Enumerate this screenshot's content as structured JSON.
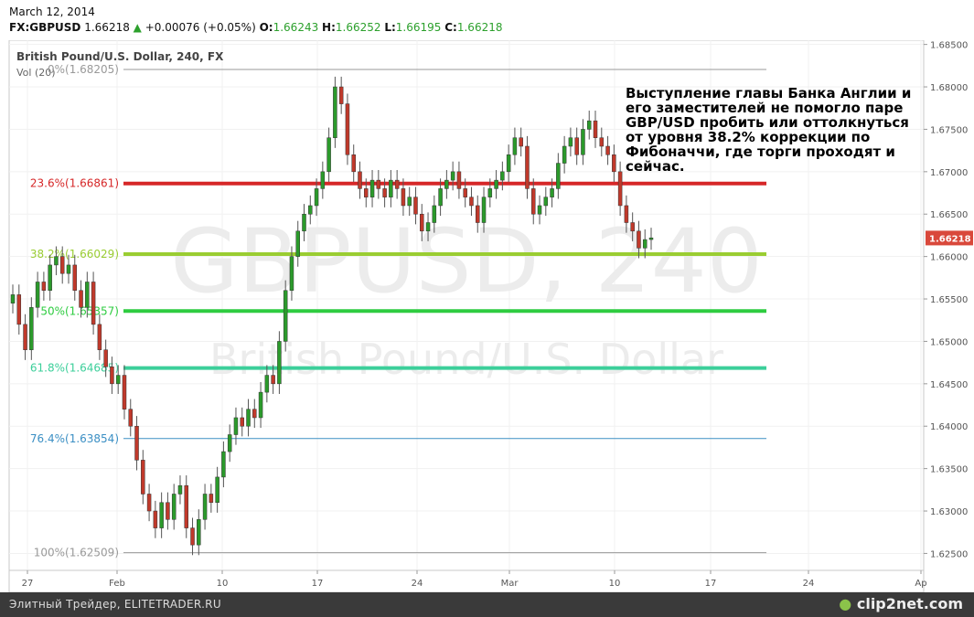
{
  "header": {
    "date": "March 12, 2014",
    "symbol": "FX:GBPUSD",
    "last": "1.66218",
    "change": "+0.00076 (+0.05%)",
    "o_label": "O:",
    "o": "1.66243",
    "h_label": "H:",
    "h": "1.66252",
    "l_label": "L:",
    "l": "1.66195",
    "c_label": "C:",
    "c": "1.66218"
  },
  "chart_data": {
    "type": "candlestick",
    "title": "British Pound/U.S. Dollar, 240, FX",
    "volume_label": "Vol (20)",
    "watermark_main": "GBPUSD, 240",
    "watermark_sub": "British Pound/U.S. Dollar",
    "ylim": [
      1.623,
      1.6855
    ],
    "y_ticks": [
      "1.68500",
      "1.68000",
      "1.67500",
      "1.67000",
      "1.66500",
      "1.66000",
      "1.65500",
      "1.65000",
      "1.64500",
      "1.64000",
      "1.63500",
      "1.63000",
      "1.62500"
    ],
    "y_tick_values": [
      1.685,
      1.68,
      1.675,
      1.67,
      1.665,
      1.66,
      1.655,
      1.65,
      1.645,
      1.64,
      1.635,
      1.63,
      1.625
    ],
    "x_ticks": [
      "27",
      "Feb",
      "10",
      "17",
      "24",
      "Mar",
      "10",
      "17",
      "24",
      "Ap"
    ],
    "price_tag": "1.66218",
    "fib_levels": [
      {
        "label": "0%(1.68205)",
        "value": 1.68205,
        "color": "#999999",
        "thick": false
      },
      {
        "label": "23.6%(1.66861)",
        "value": 1.66861,
        "color": "#d62728",
        "thick": true
      },
      {
        "label": "38.2%(1.66029)",
        "value": 1.66029,
        "color": "#9acd32",
        "thick": true
      },
      {
        "label": "50%(1.65357)",
        "value": 1.65357,
        "color": "#2ecc40",
        "thick": true
      },
      {
        "label": "61.8%(1.64685)",
        "value": 1.64685,
        "color": "#3ccf9a",
        "thick": true
      },
      {
        "label": "76.4%(1.63854)",
        "value": 1.63854,
        "color": "#3b8fc4",
        "thick": false
      },
      {
        "label": "100%(1.62509)",
        "value": 1.62509,
        "color": "#999999",
        "thick": false
      }
    ],
    "closes": [
      1.6555,
      1.652,
      1.649,
      1.654,
      1.657,
      1.656,
      1.659,
      1.66,
      1.658,
      1.659,
      1.656,
      1.654,
      1.657,
      1.652,
      1.649,
      1.647,
      1.645,
      1.646,
      1.642,
      1.64,
      1.636,
      1.632,
      1.63,
      1.628,
      1.631,
      1.629,
      1.632,
      1.633,
      1.628,
      1.626,
      1.629,
      1.632,
      1.631,
      1.634,
      1.637,
      1.639,
      1.641,
      1.64,
      1.642,
      1.641,
      1.644,
      1.646,
      1.645,
      1.65,
      1.656,
      1.66,
      1.663,
      1.665,
      1.666,
      1.668,
      1.67,
      1.674,
      1.68,
      1.678,
      1.672,
      1.67,
      1.668,
      1.667,
      1.669,
      1.668,
      1.667,
      1.669,
      1.668,
      1.666,
      1.667,
      1.665,
      1.663,
      1.664,
      1.666,
      1.668,
      1.669,
      1.67,
      1.668,
      1.667,
      1.666,
      1.664,
      1.667,
      1.668,
      1.669,
      1.67,
      1.672,
      1.674,
      1.673,
      1.668,
      1.665,
      1.666,
      1.667,
      1.668,
      1.671,
      1.673,
      1.674,
      1.672,
      1.675,
      1.676,
      1.674,
      1.673,
      1.672,
      1.67,
      1.666,
      1.664,
      1.663,
      1.661,
      1.662,
      1.6622
    ]
  },
  "annotation": "Выступление главы Банка Англии и его заместителей не помогло паре GBP/USD пробить или оттолкнуться от уровня 38.2% коррекции по Фибоначчи, где торги проходят и сейчас.",
  "footer": {
    "left": "Элитный Трейдер, ELITETRADER.RU",
    "logo": "clip2net.com"
  }
}
